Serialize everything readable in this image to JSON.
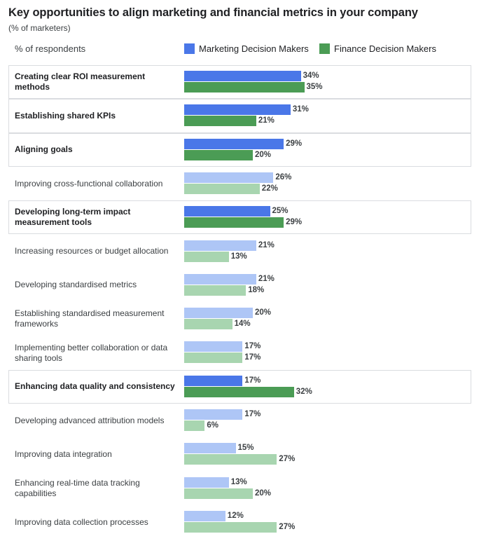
{
  "header": {
    "title": "Key opportunities to align marketing and financial metrics in your company",
    "subtitle": "(% of marketers)",
    "column_label": "% of respondents"
  },
  "colors": {
    "marketing": "#4a77e8",
    "finance": "#4b9c55",
    "marketing_light": "#aec6f6",
    "finance_light": "#a8d5b0"
  },
  "chart_data": {
    "type": "bar",
    "orientation": "horizontal",
    "title": "Key opportunities to align marketing and financial metrics in your company",
    "subtitle": "(% of marketers)",
    "categories": [
      "Creating clear ROI measurement methods",
      "Establishing shared KPIs",
      "Aligning goals",
      "Improving cross-functional collaboration",
      "Developing long-term impact measurement tools",
      "Increasing resources or budget allocation",
      "Developing standardised metrics",
      "Establishing standardised measurement frameworks",
      "Implementing better collaboration or data sharing tools",
      "Enhancing data quality and consistency",
      "Developing advanced attribution models",
      "Improving data integration",
      "Enhancing real-time data tracking capabilities",
      "Improving data collection processes"
    ],
    "highlighted": [
      true,
      true,
      true,
      false,
      true,
      false,
      false,
      false,
      false,
      true,
      false,
      false,
      false,
      false
    ],
    "series": [
      {
        "name": "Marketing Decision Makers",
        "values": [
          34,
          31,
          29,
          26,
          25,
          21,
          21,
          20,
          17,
          17,
          17,
          15,
          13,
          12
        ]
      },
      {
        "name": "Finance Decision Makers",
        "values": [
          35,
          21,
          20,
          22,
          29,
          13,
          18,
          14,
          17,
          32,
          6,
          27,
          20,
          27
        ]
      }
    ],
    "value_suffix": "%",
    "legend_position": "top-right",
    "grid": false
  }
}
